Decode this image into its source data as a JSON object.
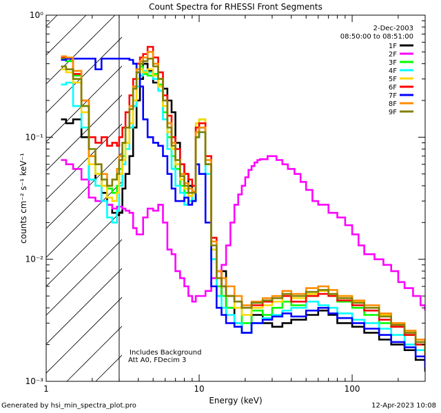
{
  "footer": {
    "left": "Generated by hsi_min_spectra_plot.pro",
    "right": "12-Apr-2023 10:08"
  },
  "chart_data": {
    "type": "line",
    "title": "Count Spectra for RHESSI Front Segments",
    "xlabel": "Energy (keV)",
    "ylabel": "counts cm⁻² s⁻¹ keV⁻¹",
    "xscale": "log",
    "yscale": "log",
    "xlim": [
      1,
      300
    ],
    "ylim": [
      0.001,
      1
    ],
    "x_tick_labels": [
      {
        "value": 1,
        "label": "1"
      },
      {
        "value": 10,
        "label": "10"
      },
      {
        "value": 100,
        "label": "100"
      }
    ],
    "y_tick_labels": [
      {
        "value": 0.001,
        "label": "10⁻³"
      },
      {
        "value": 0.01,
        "label": "10⁻²"
      },
      {
        "value": 0.1,
        "label": "10⁻¹"
      },
      {
        "value": 1,
        "label": "10⁰"
      }
    ],
    "date": "2-Dec-2003",
    "time_range": "08:50:00 to 08:51:00",
    "annotations": [
      "Includes Background",
      "Att A0, FDecim 3"
    ],
    "hatched_region_x": [
      1.0,
      3.0
    ],
    "legend_position": "top-right",
    "series": [
      {
        "name": "1F",
        "color": "#000000",
        "x": [
          1.25,
          1.35,
          1.5,
          1.7,
          1.9,
          2.1,
          2.3,
          2.5,
          2.7,
          2.9,
          3.0,
          3.15,
          3.3,
          3.5,
          3.7,
          3.9,
          4.1,
          4.3,
          4.6,
          5.0,
          5.4,
          5.8,
          6.2,
          6.6,
          7.0,
          7.5,
          8.0,
          8.5,
          9.0,
          9.5,
          10,
          11,
          12,
          13,
          14,
          15,
          17,
          19,
          22,
          26,
          30,
          35,
          40,
          50,
          60,
          70,
          80,
          100,
          120,
          150,
          180,
          220,
          260,
          300
        ],
        "y": [
          0.14,
          0.13,
          0.14,
          0.1,
          0.045,
          0.05,
          0.035,
          0.028,
          0.024,
          0.023,
          0.024,
          0.038,
          0.05,
          0.07,
          0.12,
          0.2,
          0.3,
          0.4,
          0.35,
          0.28,
          0.3,
          0.25,
          0.2,
          0.16,
          0.09,
          0.06,
          0.05,
          0.04,
          0.03,
          0.1,
          0.12,
          0.06,
          0.01,
          0.005,
          0.008,
          0.004,
          0.003,
          0.0025,
          0.0035,
          0.003,
          0.0028,
          0.003,
          0.0032,
          0.0035,
          0.0038,
          0.0035,
          0.003,
          0.0028,
          0.0025,
          0.0022,
          0.002,
          0.0018,
          0.0015,
          0.0012
        ]
      },
      {
        "name": "2F",
        "color": "#ff00ff",
        "x": [
          1.25,
          1.35,
          1.5,
          1.7,
          1.9,
          2.1,
          2.3,
          2.5,
          2.7,
          2.9,
          3.0,
          3.15,
          3.3,
          3.5,
          3.7,
          3.9,
          4.1,
          4.3,
          4.6,
          5.0,
          5.4,
          5.8,
          6.2,
          6.6,
          7.0,
          7.5,
          8.0,
          8.5,
          9.0,
          9.5,
          10,
          11,
          12,
          13,
          14,
          15,
          16,
          17,
          18,
          19,
          20,
          21,
          22,
          23,
          24,
          25,
          26,
          28,
          30,
          32,
          35,
          38,
          42,
          46,
          50,
          55,
          60,
          70,
          80,
          90,
          100,
          110,
          120,
          140,
          160,
          180,
          200,
          220,
          250,
          280,
          300
        ],
        "y": [
          0.065,
          0.06,
          0.055,
          0.045,
          0.032,
          0.03,
          0.03,
          0.028,
          0.026,
          0.027,
          0.027,
          0.026,
          0.025,
          0.024,
          0.018,
          0.016,
          0.016,
          0.022,
          0.026,
          0.025,
          0.028,
          0.02,
          0.012,
          0.011,
          0.008,
          0.007,
          0.006,
          0.005,
          0.0045,
          0.005,
          0.005,
          0.0055,
          0.007,
          0.008,
          0.009,
          0.013,
          0.02,
          0.028,
          0.034,
          0.04,
          0.047,
          0.054,
          0.058,
          0.062,
          0.065,
          0.066,
          0.066,
          0.07,
          0.07,
          0.065,
          0.06,
          0.055,
          0.05,
          0.043,
          0.037,
          0.03,
          0.028,
          0.024,
          0.022,
          0.019,
          0.016,
          0.013,
          0.011,
          0.01,
          0.009,
          0.008,
          0.0065,
          0.0058,
          0.005,
          0.0042,
          0.0038
        ]
      },
      {
        "name": "3F",
        "color": "#00ff00",
        "x": [
          1.25,
          1.35,
          1.5,
          1.7,
          1.9,
          2.1,
          2.3,
          2.5,
          2.7,
          2.9,
          3.0,
          3.15,
          3.3,
          3.5,
          3.7,
          3.9,
          4.1,
          4.3,
          4.6,
          5.0,
          5.4,
          5.8,
          6.2,
          6.6,
          7.0,
          7.5,
          8.0,
          8.5,
          9.0,
          9.5,
          10,
          11,
          12,
          13,
          14,
          15,
          17,
          19,
          22,
          26,
          30,
          35,
          40,
          50,
          60,
          70,
          80,
          100,
          120,
          150,
          180,
          220,
          260,
          300
        ],
        "y": [
          0.44,
          0.42,
          0.32,
          0.18,
          0.07,
          0.05,
          0.04,
          0.038,
          0.035,
          0.04,
          0.055,
          0.07,
          0.09,
          0.12,
          0.18,
          0.3,
          0.38,
          0.33,
          0.32,
          0.33,
          0.27,
          0.16,
          0.1,
          0.07,
          0.055,
          0.04,
          0.035,
          0.03,
          0.03,
          0.12,
          0.14,
          0.06,
          0.012,
          0.006,
          0.005,
          0.004,
          0.004,
          0.003,
          0.0038,
          0.0035,
          0.004,
          0.0045,
          0.0042,
          0.005,
          0.0055,
          0.005,
          0.0045,
          0.004,
          0.0035,
          0.003,
          0.0028,
          0.0024,
          0.002,
          0.0016
        ]
      },
      {
        "name": "4F",
        "color": "#00ffff",
        "x": [
          1.25,
          1.35,
          1.5,
          1.7,
          1.9,
          2.1,
          2.3,
          2.5,
          2.7,
          2.9,
          3.0,
          3.15,
          3.3,
          3.5,
          3.7,
          3.9,
          4.1,
          4.3,
          4.6,
          5.0,
          5.4,
          5.8,
          6.2,
          6.6,
          7.0,
          7.5,
          8.0,
          8.5,
          9.0,
          9.5,
          10,
          11,
          12,
          13,
          14,
          15,
          17,
          19,
          22,
          26,
          30,
          35,
          40,
          50,
          60,
          70,
          80,
          100,
          120,
          150,
          180,
          220,
          260,
          300
        ],
        "y": [
          0.27,
          0.28,
          0.18,
          0.12,
          0.045,
          0.04,
          0.03,
          0.022,
          0.02,
          0.025,
          0.04,
          0.06,
          0.08,
          0.12,
          0.18,
          0.26,
          0.32,
          0.35,
          0.34,
          0.3,
          0.24,
          0.14,
          0.08,
          0.055,
          0.04,
          0.035,
          0.028,
          0.03,
          0.035,
          0.1,
          0.11,
          0.05,
          0.01,
          0.005,
          0.004,
          0.0035,
          0.003,
          0.0025,
          0.003,
          0.0033,
          0.0035,
          0.0038,
          0.004,
          0.0045,
          0.0042,
          0.004,
          0.0036,
          0.0032,
          0.003,
          0.0027,
          0.0024,
          0.002,
          0.0018,
          0.0015
        ]
      },
      {
        "name": "5F",
        "color": "#ffd700",
        "x": [
          1.25,
          1.35,
          1.5,
          1.7,
          1.9,
          2.1,
          2.3,
          2.5,
          2.7,
          2.9,
          3.0,
          3.15,
          3.3,
          3.5,
          3.7,
          3.9,
          4.1,
          4.3,
          4.6,
          5.0,
          5.4,
          5.8,
          6.2,
          6.6,
          7.0,
          7.5,
          8.0,
          8.5,
          9.0,
          9.5,
          10,
          11,
          12,
          13,
          14,
          15,
          17,
          19,
          22,
          26,
          30,
          35,
          40,
          50,
          60,
          70,
          80,
          100,
          120,
          150,
          180,
          220,
          260,
          300
        ],
        "y": [
          0.36,
          0.34,
          0.28,
          0.16,
          0.06,
          0.05,
          0.04,
          0.032,
          0.03,
          0.035,
          0.05,
          0.065,
          0.09,
          0.13,
          0.2,
          0.3,
          0.36,
          0.34,
          0.36,
          0.32,
          0.26,
          0.18,
          0.11,
          0.08,
          0.06,
          0.045,
          0.038,
          0.033,
          0.035,
          0.13,
          0.14,
          0.06,
          0.012,
          0.007,
          0.006,
          0.005,
          0.004,
          0.0035,
          0.004,
          0.0042,
          0.0045,
          0.005,
          0.0048,
          0.0052,
          0.0055,
          0.0052,
          0.005,
          0.0045,
          0.004,
          0.0035,
          0.003,
          0.0026,
          0.0022,
          0.0018
        ]
      },
      {
        "name": "6F",
        "color": "#ff0000",
        "x": [
          1.25,
          1.35,
          1.5,
          1.7,
          1.9,
          2.1,
          2.3,
          2.5,
          2.7,
          2.9,
          3.0,
          3.15,
          3.3,
          3.5,
          3.7,
          3.9,
          4.1,
          4.3,
          4.6,
          5.0,
          5.4,
          5.8,
          6.2,
          6.6,
          7.0,
          7.5,
          8.0,
          8.5,
          9.0,
          9.5,
          10,
          11,
          12,
          13,
          14,
          15,
          17,
          19,
          22,
          26,
          30,
          35,
          40,
          50,
          60,
          70,
          80,
          100,
          120,
          150,
          180,
          220,
          260,
          300
        ],
        "y": [
          0.45,
          0.44,
          0.33,
          0.2,
          0.1,
          0.09,
          0.1,
          0.085,
          0.09,
          0.085,
          0.1,
          0.12,
          0.16,
          0.22,
          0.3,
          0.4,
          0.45,
          0.48,
          0.55,
          0.45,
          0.34,
          0.22,
          0.15,
          0.1,
          0.08,
          0.06,
          0.05,
          0.045,
          0.04,
          0.12,
          0.13,
          0.07,
          0.015,
          0.008,
          0.006,
          0.005,
          0.0045,
          0.004,
          0.0042,
          0.0045,
          0.0048,
          0.005,
          0.0045,
          0.005,
          0.0052,
          0.005,
          0.0046,
          0.0042,
          0.0038,
          0.0032,
          0.0028,
          0.0024,
          0.002,
          0.0015
        ]
      },
      {
        "name": "7F",
        "color": "#0000ff",
        "x": [
          1.25,
          1.35,
          1.5,
          1.7,
          1.9,
          2.1,
          2.3,
          2.5,
          2.7,
          2.9,
          3.0,
          3.15,
          3.3,
          3.5,
          3.7,
          3.9,
          4.1,
          4.3,
          4.6,
          5.0,
          5.4,
          5.8,
          6.2,
          6.6,
          7.0,
          7.5,
          8.0,
          8.5,
          9.0,
          9.5,
          10,
          11,
          12,
          13,
          14,
          15,
          17,
          19,
          22,
          26,
          30,
          35,
          40,
          50,
          60,
          70,
          80,
          100,
          120,
          150,
          180,
          220,
          260,
          300
        ],
        "y": [
          0.43,
          0.44,
          0.44,
          0.44,
          0.44,
          0.36,
          0.44,
          0.44,
          0.44,
          0.44,
          0.44,
          0.44,
          0.44,
          0.43,
          0.4,
          0.34,
          0.26,
          0.14,
          0.1,
          0.09,
          0.085,
          0.07,
          0.05,
          0.038,
          0.03,
          0.03,
          0.032,
          0.028,
          0.03,
          0.06,
          0.05,
          0.02,
          0.006,
          0.004,
          0.0035,
          0.003,
          0.0028,
          0.0025,
          0.003,
          0.0032,
          0.0034,
          0.0036,
          0.0034,
          0.0038,
          0.004,
          0.0036,
          0.0033,
          0.003,
          0.0027,
          0.0024,
          0.0021,
          0.0019,
          0.0016,
          0.0013
        ]
      },
      {
        "name": "8F",
        "color": "#ff8c00",
        "x": [
          1.25,
          1.35,
          1.5,
          1.7,
          1.9,
          2.1,
          2.3,
          2.5,
          2.7,
          2.9,
          3.0,
          3.15,
          3.3,
          3.5,
          3.7,
          3.9,
          4.1,
          4.3,
          4.6,
          5.0,
          5.4,
          5.8,
          6.2,
          6.6,
          7.0,
          7.5,
          8.0,
          8.5,
          9.0,
          9.5,
          10,
          11,
          12,
          13,
          14,
          15,
          17,
          19,
          22,
          26,
          30,
          35,
          40,
          50,
          60,
          70,
          80,
          100,
          120,
          150,
          180,
          220,
          260,
          300
        ],
        "y": [
          0.46,
          0.45,
          0.35,
          0.2,
          0.07,
          0.06,
          0.05,
          0.04,
          0.045,
          0.055,
          0.07,
          0.09,
          0.12,
          0.18,
          0.26,
          0.36,
          0.42,
          0.45,
          0.5,
          0.4,
          0.3,
          0.2,
          0.13,
          0.09,
          0.065,
          0.05,
          0.042,
          0.038,
          0.036,
          0.11,
          0.12,
          0.065,
          0.014,
          0.008,
          0.007,
          0.006,
          0.005,
          0.0042,
          0.0045,
          0.0048,
          0.005,
          0.0055,
          0.0052,
          0.0058,
          0.006,
          0.0056,
          0.005,
          0.0046,
          0.0042,
          0.0036,
          0.003,
          0.0026,
          0.0022,
          0.0018
        ]
      },
      {
        "name": "9F",
        "color": "#808000",
        "x": [
          1.25,
          1.35,
          1.5,
          1.7,
          1.9,
          2.1,
          2.3,
          2.5,
          2.7,
          2.9,
          3.0,
          3.15,
          3.3,
          3.5,
          3.7,
          3.9,
          4.1,
          4.3,
          4.6,
          5.0,
          5.4,
          5.8,
          6.2,
          6.6,
          7.0,
          7.5,
          8.0,
          8.5,
          9.0,
          9.5,
          10,
          11,
          12,
          13,
          14,
          15,
          17,
          19,
          22,
          26,
          30,
          35,
          40,
          50,
          60,
          70,
          80,
          100,
          120,
          150,
          180,
          220,
          260,
          300
        ],
        "y": [
          0.38,
          0.36,
          0.3,
          0.18,
          0.08,
          0.06,
          0.045,
          0.04,
          0.045,
          0.05,
          0.065,
          0.09,
          0.12,
          0.17,
          0.25,
          0.34,
          0.4,
          0.42,
          0.44,
          0.38,
          0.3,
          0.2,
          0.12,
          0.085,
          0.065,
          0.048,
          0.04,
          0.035,
          0.035,
          0.1,
          0.11,
          0.06,
          0.013,
          0.007,
          0.006,
          0.005,
          0.0045,
          0.004,
          0.0044,
          0.0046,
          0.0048,
          0.0052,
          0.005,
          0.0054,
          0.0056,
          0.0052,
          0.0048,
          0.0044,
          0.004,
          0.0034,
          0.0029,
          0.0025,
          0.0021,
          0.0017
        ]
      }
    ]
  }
}
